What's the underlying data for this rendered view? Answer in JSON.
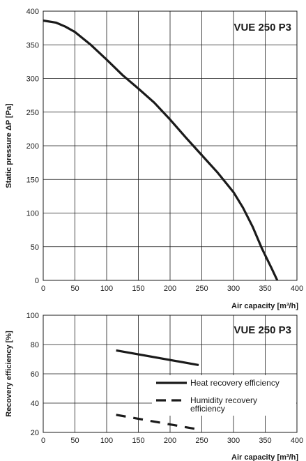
{
  "chart_data": [
    {
      "type": "line",
      "title": "VUE  250 P3",
      "xlabel": "Air capacity [m³/h]",
      "ylabel": "Static pressure ΔP [Pa]",
      "xlim": [
        0,
        400
      ],
      "ylim": [
        0,
        400
      ],
      "xticks": [
        0,
        50,
        100,
        150,
        200,
        250,
        300,
        350,
        400
      ],
      "yticks": [
        0,
        50,
        100,
        150,
        200,
        250,
        300,
        350,
        400
      ],
      "grid": true,
      "series": [
        {
          "style": "solid",
          "color": "#1a1a1a",
          "points": [
            [
              0,
              386
            ],
            [
              20,
              383
            ],
            [
              35,
              377
            ],
            [
              50,
              369
            ],
            [
              75,
              350
            ],
            [
              100,
              328
            ],
            [
              125,
              305
            ],
            [
              150,
              285
            ],
            [
              175,
              264
            ],
            [
              200,
              239
            ],
            [
              225,
              212
            ],
            [
              250,
              186
            ],
            [
              275,
              160
            ],
            [
              300,
              131
            ],
            [
              315,
              108
            ],
            [
              330,
              80
            ],
            [
              345,
              47
            ],
            [
              360,
              18
            ],
            [
              369,
              0
            ]
          ]
        }
      ]
    },
    {
      "type": "line",
      "title": "VUE  250 P3",
      "xlabel": "Air capacity [m³/h]",
      "ylabel": "Recovery efficiency [%]",
      "xlim": [
        0,
        400
      ],
      "ylim": [
        20,
        100
      ],
      "xticks": [
        0,
        50,
        100,
        150,
        200,
        250,
        300,
        350,
        400
      ],
      "yticks": [
        20,
        40,
        60,
        80,
        100
      ],
      "grid": true,
      "legend_position": "right",
      "series": [
        {
          "name": "Heat recovery efficiency",
          "style": "solid",
          "color": "#1a1a1a",
          "points": [
            [
              115,
              76
            ],
            [
              245,
              66
            ]
          ]
        },
        {
          "name": "Humidity recovery efficiency",
          "legend_lines": [
            "Humidity recovery",
            "efficiency"
          ],
          "style": "dashed",
          "color": "#1a1a1a",
          "points": [
            [
              115,
              32
            ],
            [
              245,
              22
            ]
          ]
        }
      ]
    }
  ]
}
